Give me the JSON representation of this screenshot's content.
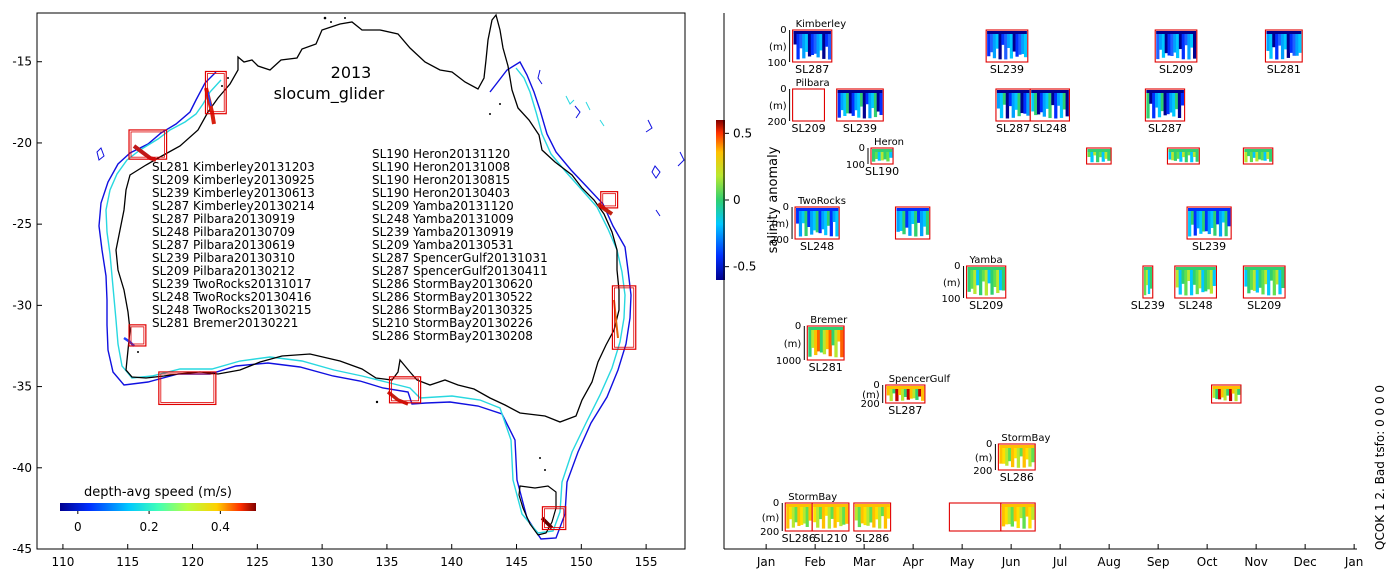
{
  "figure": {
    "qc_label": "QCOK 1  2. Bad tsfo: 0  0  0  0"
  },
  "chart_data": [
    {
      "type": "map",
      "title_year": "2013",
      "title_platform": "slocum_glider",
      "xlim": [
        108,
        158
      ],
      "ylim": [
        -45,
        -12
      ],
      "x_ticks": [
        "110",
        "115",
        "120",
        "125",
        "130",
        "135",
        "140",
        "145",
        "150",
        "155"
      ],
      "y_ticks": [
        "-15",
        "-20",
        "-25",
        "-30",
        "-35",
        "-40",
        "-45"
      ],
      "colorbar": {
        "label": "depth-avg speed (m/s)",
        "ticks": [
          "0",
          "0.2",
          "0.4"
        ],
        "range": [
          -0.05,
          0.5
        ]
      },
      "deployments_left": [
        "SL281 Kimberley20131203",
        "SL209 Kimberley20130925",
        "SL239 Kimberley20130613",
        "SL287 Kimberley20130214",
        "SL287 Pilbara20130919",
        "SL248 Pilbara20130709",
        "SL287 Pilbara20130619",
        "SL239 Pilbara20130310",
        "SL209 Pilbara20130212",
        "SL239 TwoRocks20131017",
        "SL248 TwoRocks20130416",
        "SL248 TwoRocks20130215",
        "SL281 Bremer20130221"
      ],
      "deployments_right": [
        "SL190 Heron20131120",
        "SL190 Heron20131008",
        "SL190 Heron20130815",
        "SL190 Heron20130403",
        "SL209 Yamba20131120",
        "SL248 Yamba20131009",
        "SL239 Yamba20130919",
        "SL209 Yamba20130531",
        "SL287 SpencerGulf20131031",
        "SL287 SpencerGulf20130411",
        "SL286 StormBay20130620",
        "SL286 StormBay20130522",
        "SL286 StormBay20130325",
        "SL210 StormBay20130226",
        "SL286 StormBay20130208"
      ],
      "regions": [
        {
          "name": "Kimberley",
          "lon": [
            121.0,
            122.6
          ],
          "lat": [
            -18.2,
            -15.6
          ]
        },
        {
          "name": "Pilbara",
          "lon": [
            115.1,
            118.0
          ],
          "lat": [
            -21.0,
            -19.2
          ]
        },
        {
          "name": "Heron",
          "lon": [
            151.5,
            152.8
          ],
          "lat": [
            -24.0,
            -23.0
          ]
        },
        {
          "name": "TwoRocks",
          "lon": [
            115.1,
            116.4
          ],
          "lat": [
            -32.5,
            -31.2
          ]
        },
        {
          "name": "Bremer",
          "lon": [
            117.4,
            121.8
          ],
          "lat": [
            -36.1,
            -34.1
          ]
        },
        {
          "name": "SpencerGulf",
          "lon": [
            135.2,
            137.6
          ],
          "lat": [
            -36.0,
            -34.4
          ]
        },
        {
          "name": "Yamba",
          "lon": [
            152.4,
            154.2
          ],
          "lat": [
            -32.7,
            -28.8
          ]
        },
        {
          "name": "StormBay",
          "lon": [
            147.0,
            148.8
          ],
          "lat": [
            -43.8,
            -42.4
          ]
        }
      ]
    },
    {
      "type": "timeline-sections",
      "colorbar": {
        "label": "salinity anomaly",
        "ticks": [
          "0.5",
          "0",
          "-0.5"
        ],
        "range": [
          -0.6,
          0.6
        ]
      },
      "x_ticks": [
        "Jan",
        "Feb",
        "Mar",
        "Apr",
        "May",
        "Jun",
        "Jul",
        "Aug",
        "Sep",
        "Oct",
        "Nov",
        "Dec",
        "Jan"
      ],
      "rows": [
        {
          "site": "Kimberley",
          "depth_ticks": [
            "0",
            "(m)",
            "100"
          ],
          "gliders": [
            {
              "label": "SL287",
              "start_month": 1.4,
              "end_month": 2.2
            },
            {
              "label": "SL239",
              "start_month": 5.35,
              "end_month": 6.2
            },
            {
              "label": "SL209",
              "start_month": 8.8,
              "end_month": 9.65
            },
            {
              "label": "SL281",
              "start_month": 11.05,
              "end_month": 11.8
            }
          ]
        },
        {
          "site": "Pilbara",
          "depth_ticks": [
            "0",
            "(m)",
            "200"
          ],
          "gliders": [
            {
              "label": "SL209",
              "start_month": 1.4,
              "end_month": 2.05
            },
            {
              "label": "SL239",
              "start_month": 2.3,
              "end_month": 3.25
            },
            {
              "label": "SL287",
              "start_month": 5.55,
              "end_month": 6.25
            },
            {
              "label": "SL248",
              "start_month": 6.25,
              "end_month": 7.05
            },
            {
              "label": "SL287",
              "start_month": 8.6,
              "end_month": 9.4
            }
          ]
        },
        {
          "site": "Heron",
          "depth_ticks": [
            "0",
            "",
            "100"
          ],
          "gliders": [
            {
              "label": "SL190",
              "start_month": 3.0,
              "end_month": 3.45
            },
            {
              "label": "",
              "start_month": 7.4,
              "end_month": 7.9
            },
            {
              "label": "",
              "start_month": 9.05,
              "end_month": 9.7
            },
            {
              "label": "",
              "start_month": 10.6,
              "end_month": 11.2
            }
          ]
        },
        {
          "site": "TwoRocks",
          "depth_ticks": [
            "0",
            "(m)",
            "200"
          ],
          "gliders": [
            {
              "label": "SL248",
              "start_month": 1.45,
              "end_month": 2.35
            },
            {
              "label": "",
              "start_month": 3.5,
              "end_month": 4.2
            },
            {
              "label": "SL239",
              "start_month": 9.45,
              "end_month": 10.35
            }
          ]
        },
        {
          "site": "Yamba",
          "depth_ticks": [
            "0",
            "(m)",
            "100"
          ],
          "gliders": [
            {
              "label": "SL209",
              "start_month": 4.95,
              "end_month": 5.75
            },
            {
              "label": "SL239",
              "start_month": 8.55,
              "end_month": 8.75
            },
            {
              "label": "SL248",
              "start_month": 9.2,
              "end_month": 10.05
            },
            {
              "label": "SL209",
              "start_month": 10.6,
              "end_month": 11.45
            }
          ]
        },
        {
          "site": "Bremer",
          "depth_ticks": [
            "0",
            "(m)",
            "1000"
          ],
          "gliders": [
            {
              "label": "SL281",
              "start_month": 1.7,
              "end_month": 2.45
            }
          ]
        },
        {
          "site": "SpencerGulf",
          "depth_ticks": [
            "0",
            "(m)",
            "200"
          ],
          "gliders": [
            {
              "label": "SL287",
              "start_month": 3.3,
              "end_month": 4.1
            },
            {
              "label": "",
              "start_month": 9.95,
              "end_month": 10.55
            }
          ]
        },
        {
          "site": "StormBay",
          "depth_ticks": [
            "0",
            "(m)",
            "200"
          ],
          "gliders": [
            {
              "label": "SL286",
              "start_month": 5.6,
              "end_month": 6.35
            }
          ]
        },
        {
          "site": "StormBay",
          "depth_ticks": [
            "0",
            "(m)",
            "200"
          ],
          "gliders": [
            {
              "label": "SL286",
              "start_month": 1.25,
              "end_month": 1.8
            },
            {
              "label": "SL210",
              "start_month": 1.8,
              "end_month": 2.55
            },
            {
              "label": "SL286",
              "start_month": 2.65,
              "end_month": 3.4
            },
            {
              "label": "",
              "start_month": 4.6,
              "end_month": 5.65
            },
            {
              "label": "",
              "start_month": 5.65,
              "end_month": 6.35
            }
          ]
        }
      ]
    }
  ]
}
